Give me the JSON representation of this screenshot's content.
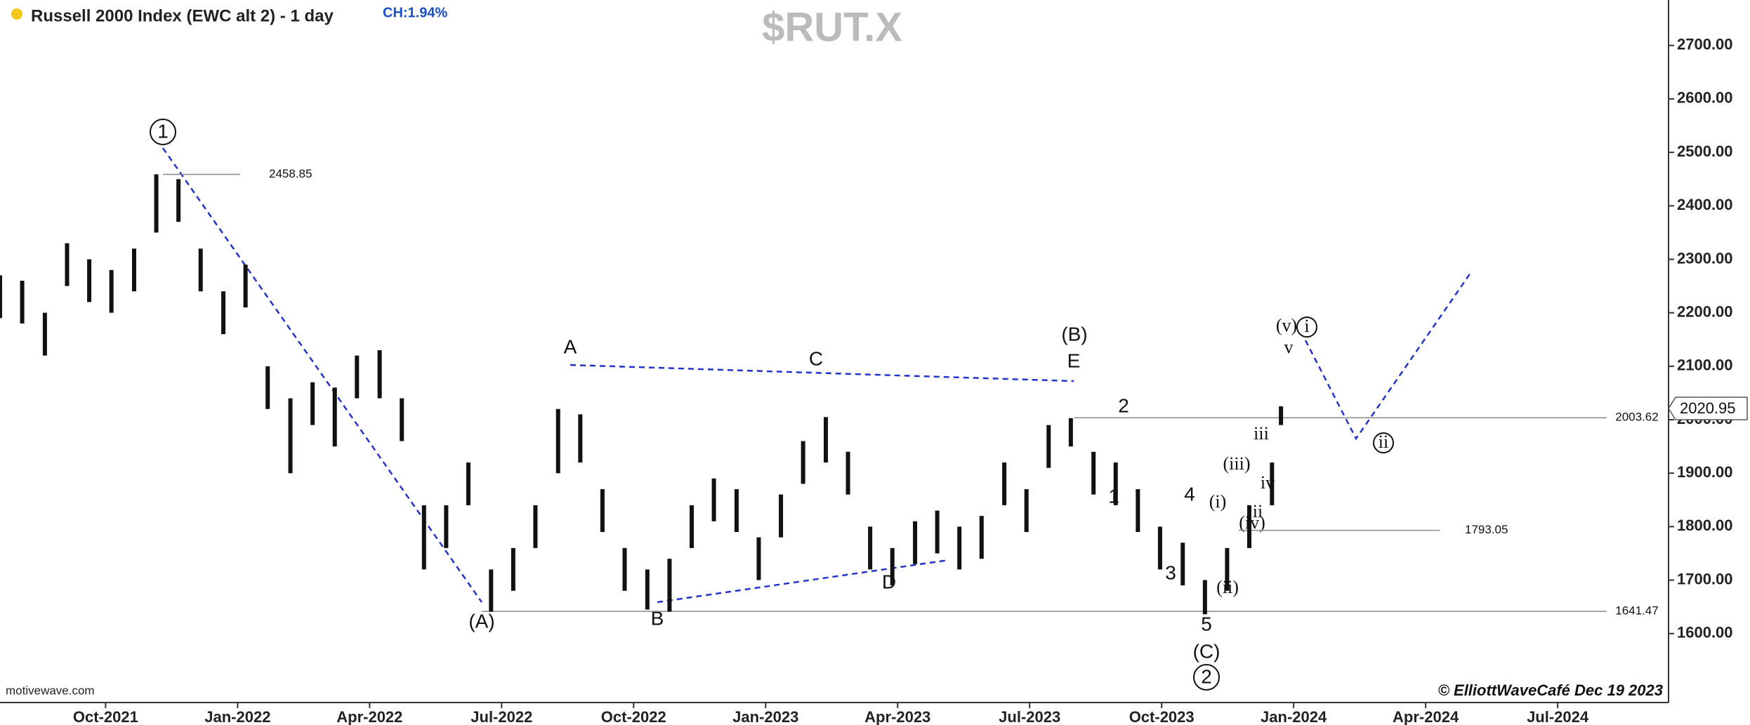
{
  "chart_data": {
    "type": "ohlc",
    "title": "Russell 2000 Index (EWC alt 2) - 1 day",
    "change": "CH:1.94%",
    "symbol": "$RUT.X",
    "source": "motivewave.com",
    "credit": "© ElliottWaveCafé Dec 19 2023",
    "color": "#111111",
    "grid": false,
    "x": [
      2021.55,
      2021.592,
      2021.635,
      2021.677,
      2021.719,
      2021.761,
      2021.804,
      2021.846,
      2021.888,
      2021.93,
      2021.973,
      2022.015,
      2022.057,
      2022.1,
      2022.142,
      2022.184,
      2022.226,
      2022.269,
      2022.311,
      2022.353,
      2022.395,
      2022.437,
      2022.48,
      2022.522,
      2022.564,
      2022.607,
      2022.649,
      2022.691,
      2022.733,
      2022.776,
      2022.818,
      2022.86,
      2022.902,
      2022.945,
      2022.987,
      2023.029,
      2023.071,
      2023.114,
      2023.156,
      2023.198,
      2023.24,
      2023.283,
      2023.325,
      2023.367,
      2023.409,
      2023.452,
      2023.494,
      2023.536,
      2023.578,
      2023.621,
      2023.663,
      2023.705,
      2023.747,
      2023.79,
      2023.832,
      2023.874,
      2023.916,
      2023.959,
      2023.976
    ],
    "high": [
      2270,
      2260,
      2200,
      2330,
      2300,
      2280,
      2320,
      2459,
      2450,
      2320,
      2240,
      2290,
      2100,
      2040,
      2070,
      2060,
      2120,
      2130,
      2040,
      1840,
      1840,
      1920,
      1720,
      1760,
      1840,
      2020,
      2010,
      1870,
      1760,
      1720,
      1740,
      1840,
      1890,
      1870,
      1780,
      1860,
      1960,
      2005,
      1940,
      1800,
      1760,
      1810,
      1830,
      1800,
      1820,
      1920,
      1870,
      1990,
      2003,
      1940,
      1920,
      1870,
      1800,
      1770,
      1700,
      1760,
      1840,
      1920,
      2025
    ],
    "low": [
      2190,
      2180,
      2120,
      2250,
      2220,
      2200,
      2240,
      2350,
      2370,
      2240,
      2160,
      2210,
      2020,
      1900,
      1990,
      1950,
      2040,
      2040,
      1960,
      1720,
      1760,
      1840,
      1641,
      1680,
      1760,
      1900,
      1920,
      1790,
      1680,
      1645,
      1641,
      1760,
      1810,
      1790,
      1700,
      1780,
      1880,
      1920,
      1860,
      1720,
      1690,
      1730,
      1750,
      1720,
      1740,
      1840,
      1790,
      1910,
      1950,
      1860,
      1840,
      1790,
      1720,
      1690,
      1636,
      1680,
      1760,
      1840,
      1990
    ],
    "xlim": [
      2021.55,
      2024.71
    ],
    "xticks": [
      {
        "value": 2021.75,
        "label": "Oct-2021"
      },
      {
        "value": 2022.0,
        "label": "Jan-2022"
      },
      {
        "value": 2022.25,
        "label": "Apr-2022"
      },
      {
        "value": 2022.5,
        "label": "Jul-2022"
      },
      {
        "value": 2022.75,
        "label": "Oct-2022"
      },
      {
        "value": 2023.0,
        "label": "Jan-2023"
      },
      {
        "value": 2023.25,
        "label": "Apr-2023"
      },
      {
        "value": 2023.5,
        "label": "Jul-2023"
      },
      {
        "value": 2023.75,
        "label": "Oct-2023"
      },
      {
        "value": 2024.0,
        "label": "Jan-2024"
      },
      {
        "value": 2024.25,
        "label": "Apr-2024"
      },
      {
        "value": 2024.5,
        "label": "Jul-2024"
      }
    ],
    "ylim": [
      1471,
      2785
    ],
    "yticks": [
      {
        "value": 1600,
        "label": "1600.00"
      },
      {
        "value": 1700,
        "label": "1700.00"
      },
      {
        "value": 1800,
        "label": "1800.00"
      },
      {
        "value": 1900,
        "label": "1900.00"
      },
      {
        "value": 2000,
        "label": "2000.00"
      },
      {
        "value": 2100,
        "label": "2100.00"
      },
      {
        "value": 2200,
        "label": "2200.00"
      },
      {
        "value": 2300,
        "label": "2300.00"
      },
      {
        "value": 2400,
        "label": "2400.00"
      },
      {
        "value": 2500,
        "label": "2500.00"
      },
      {
        "value": 2600,
        "label": "2600.00"
      },
      {
        "value": 2700,
        "label": "2700.00"
      }
    ],
    "levels": [
      2458.85,
      2003.62,
      1793.05,
      1641.47
    ],
    "last_price": 2020.95,
    "annotations": [
      "1",
      "A",
      "C",
      "(B)",
      "E",
      "2",
      "1",
      "4",
      "3",
      "5",
      "(C)",
      "2",
      "(A)",
      "B",
      "D",
      "(i)",
      "(ii)",
      "(iii)",
      "(iv)",
      "iii",
      "iv",
      "ii",
      "v",
      "(v)",
      "i",
      "ii"
    ]
  }
}
